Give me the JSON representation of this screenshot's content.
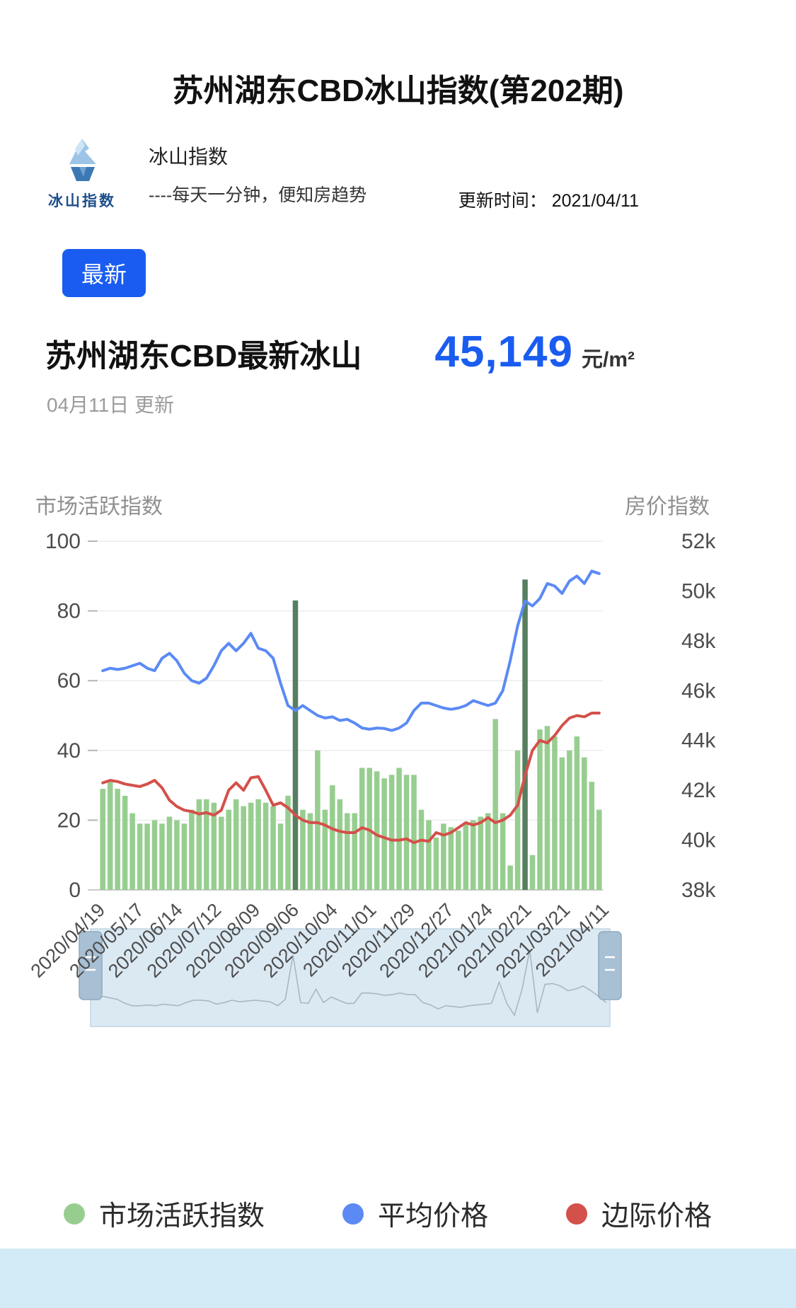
{
  "page": {
    "title": "苏州湖东CBD冰山指数(第202期)",
    "brand": {
      "logo_text": "冰山指数",
      "name": "冰山指数",
      "slogan": "----每天一分钟，便知房趋势"
    },
    "update_time_label": "更新时间：",
    "update_time_value": "2021/04/11",
    "badge": "最新",
    "headline": "苏州湖东CBD最新冰山",
    "price_value": "45,149",
    "price_unit": "元/m²",
    "update_note": "04月11日 更新"
  },
  "colors": {
    "accent_blue": "#1a5cf0",
    "bar_green": "#97ce90",
    "bar_green_dark": "#567f60",
    "line_blue": "#5b8af5",
    "line_red": "#d4504a",
    "footer_blue": "#d2ebf7"
  },
  "chart_data": {
    "type": "bar",
    "subtype": "bar+line combo, dual y-axis, with datazoom slider",
    "left_axis": {
      "title": "市场活跃指数",
      "min": 0,
      "max": 100,
      "ticks": [
        0,
        20,
        40,
        60,
        80,
        100
      ]
    },
    "right_axis": {
      "title": "房价指数",
      "min": 38000,
      "max": 52000,
      "tick_labels": [
        "38k",
        "40k",
        "42k",
        "44k",
        "46k",
        "48k",
        "50k",
        "52k"
      ]
    },
    "x_tick_labels": [
      "2020/04/19",
      "2020/05/17",
      "2020/06/14",
      "2020/07/12",
      "2020/08/09",
      "2020/09/06",
      "2020/10/04",
      "2020/11/01",
      "2020/11/29",
      "2020/12/27",
      "2021/01/24",
      "2021/02/21",
      "2021/03/21",
      "2021/04/11"
    ],
    "series": [
      {
        "name": "市场活跃指数",
        "type": "bar",
        "axis": "left",
        "color": "#97ce90",
        "highlight_color": "#567f60",
        "highlight_threshold": 60,
        "values": [
          29,
          31,
          29,
          27,
          22,
          19,
          19,
          20,
          19,
          21,
          20,
          19,
          23,
          26,
          26,
          25,
          21,
          23,
          26,
          24,
          25,
          26,
          25,
          24,
          19,
          27,
          83,
          23,
          22,
          40,
          23,
          30,
          26,
          22,
          22,
          35,
          35,
          34,
          32,
          33,
          35,
          33,
          33,
          23,
          20,
          15,
          19,
          18,
          17,
          19,
          20,
          21,
          22,
          49,
          22,
          7,
          40,
          89,
          10,
          46,
          47,
          44,
          38,
          40,
          44,
          38,
          31,
          23
        ]
      },
      {
        "name": "平均价格",
        "type": "line",
        "axis": "right",
        "color": "#5b8af5",
        "values": [
          46800,
          46900,
          46850,
          46900,
          47000,
          47100,
          46900,
          46800,
          47300,
          47500,
          47200,
          46700,
          46400,
          46300,
          46500,
          47000,
          47600,
          47900,
          47600,
          47900,
          48300,
          47700,
          47600,
          47300,
          46300,
          45400,
          45200,
          45400,
          45200,
          45000,
          44900,
          44950,
          44800,
          44850,
          44700,
          44500,
          44450,
          44500,
          44480,
          44400,
          44500,
          44700,
          45200,
          45500,
          45500,
          45400,
          45300,
          45250,
          45300,
          45400,
          45600,
          45500,
          45400,
          45500,
          46000,
          47200,
          48600,
          49600,
          49400,
          49700,
          50300,
          50200,
          49900,
          50400,
          50600,
          50300,
          50800,
          50700
        ]
      },
      {
        "name": "边际价格",
        "type": "line",
        "axis": "right",
        "color": "#d4504a",
        "values": [
          42300,
          42400,
          42350,
          42250,
          42200,
          42150,
          42250,
          42400,
          42100,
          41600,
          41350,
          41200,
          41150,
          41050,
          41100,
          41000,
          41200,
          42000,
          42300,
          42000,
          42500,
          42550,
          42000,
          41400,
          41500,
          41300,
          41000,
          40800,
          40700,
          40700,
          40600,
          40450,
          40350,
          40300,
          40300,
          40500,
          40400,
          40200,
          40100,
          40000,
          40000,
          40050,
          39900,
          40000,
          39950,
          40300,
          40200,
          40300,
          40500,
          40700,
          40600,
          40700,
          40900,
          40700,
          40800,
          41000,
          41400,
          42600,
          43600,
          44000,
          43900,
          44200,
          44600,
          44900,
          45000,
          44950,
          45100,
          45100
        ]
      }
    ],
    "legend": [
      {
        "label": "市场活跃指数",
        "color": "#97ce90"
      },
      {
        "label": "平均价格",
        "color": "#5b8af5"
      },
      {
        "label": "边际价格",
        "color": "#d4504a"
      }
    ],
    "grid": true,
    "legend_position": "bottom"
  }
}
